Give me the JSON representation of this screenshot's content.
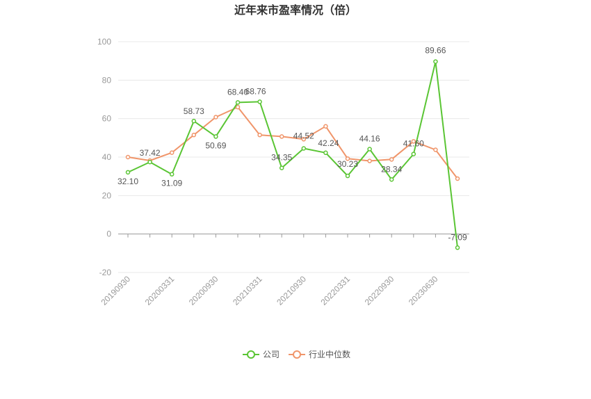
{
  "chart_data": {
    "type": "line",
    "title": "近年来市盈率情况（倍）",
    "xlabel": "",
    "ylabel": "",
    "ylim": [
      -20,
      100
    ],
    "yticks": [
      -20,
      0,
      20,
      40,
      60,
      80,
      100
    ],
    "grid": true,
    "legend_position": "bottom",
    "x_tick_labels": [
      "20190930",
      "20200331",
      "20200930",
      "20210331",
      "20210930",
      "20220331",
      "20220930",
      "20230630"
    ],
    "series": [
      {
        "name": "公司",
        "color": "#5ac534",
        "values": [
          32.1,
          37.42,
          31.09,
          58.73,
          50.69,
          68.4,
          68.76,
          34.35,
          44.52,
          42.24,
          30.23,
          44.16,
          28.34,
          41.6,
          89.66,
          -7.09
        ],
        "labels": [
          "32.10",
          "37.42",
          "31.09",
          "58.73",
          "50.69",
          "68.40",
          "68.76",
          "34.35",
          "44.52",
          "42.24",
          "30.23",
          "44.16",
          "28.34",
          "41.60",
          "89.66",
          "-7.09"
        ]
      },
      {
        "name": "行业中位数",
        "color": "#f0956a",
        "values": [
          40.0,
          38.2,
          42.3,
          51.5,
          60.8,
          66.0,
          51.5,
          50.7,
          49.3,
          56.0,
          39.2,
          38.0,
          38.8,
          48.2,
          43.8,
          28.8
        ]
      }
    ]
  }
}
